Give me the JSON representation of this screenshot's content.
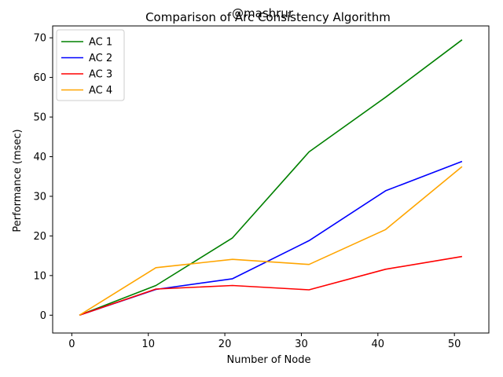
{
  "chart_data": {
    "type": "line",
    "title": "Comparison of Arc Consistency Algorithm",
    "watermark": "@mashrur",
    "xlabel": "Number of Node",
    "ylabel": "Performance (msec)",
    "x": [
      1,
      11,
      21,
      31,
      41,
      51
    ],
    "xlim": [
      -2.5,
      54.5
    ],
    "ylim": [
      -4.5,
      73
    ],
    "xticks": [
      0,
      10,
      20,
      30,
      40,
      50
    ],
    "yticks": [
      0,
      10,
      20,
      30,
      40,
      50,
      60,
      70
    ],
    "grid": false,
    "legend_position": "top-left",
    "series": [
      {
        "name": "AC 1",
        "color": "#008000",
        "values": [
          0,
          7.5,
          19.5,
          41.2,
          55.0,
          69.5
        ]
      },
      {
        "name": "AC 2",
        "color": "#0000ff",
        "values": [
          0,
          6.5,
          9.2,
          18.8,
          31.4,
          38.8
        ]
      },
      {
        "name": "AC 3",
        "color": "#ff0000",
        "values": [
          0,
          6.6,
          7.5,
          6.4,
          11.6,
          14.8
        ]
      },
      {
        "name": "AC 4",
        "color": "#ffa500",
        "values": [
          0,
          12.0,
          14.1,
          12.8,
          21.6,
          37.5
        ]
      }
    ]
  }
}
